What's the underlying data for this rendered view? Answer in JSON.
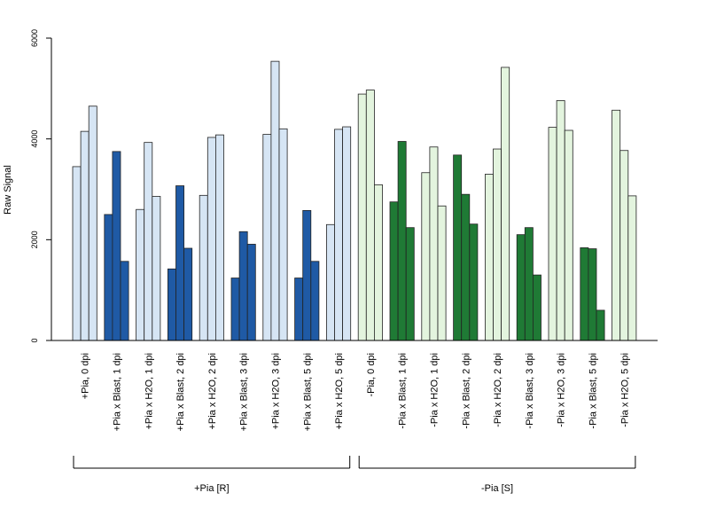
{
  "chart_data": {
    "type": "bar",
    "ylabel": "Raw Signal",
    "ylim": [
      0,
      6000
    ],
    "yticks": [
      "0",
      "2000",
      "4000",
      "6000"
    ],
    "grid": false,
    "legend": "none",
    "replicates_per_category": 3,
    "categories": [
      "+Pia, 0 dpi",
      "+Pia x Blast, 1 dpi",
      "+Pia x H2O, 1 dpi",
      "+Pia x Blast, 2 dpi",
      "+Pia x H2O, 2 dpi",
      "+Pia x Blast, 3 dpi",
      "+Pia x H2O, 3 dpi",
      "+Pia x Blast, 5 dpi",
      "+Pia x H2O, 5 dpi",
      "-Pia, 0 dpi",
      "-Pia x Blast, 1 dpi",
      "-Pia x H2O, 1 dpi",
      "-Pia x Blast, 2 dpi",
      "-Pia x H2O, 2 dpi",
      "-Pia x Blast, 3 dpi",
      "-Pia x H2O, 3 dpi",
      "-Pia x Blast, 5 dpi",
      "-Pia x H2O, 5 dpi"
    ],
    "values": [
      [
        3450,
        4150,
        4650
      ],
      [
        2500,
        3750,
        1570
      ],
      [
        2600,
        3930,
        2860
      ],
      [
        1420,
        3070,
        1830
      ],
      [
        2880,
        4030,
        4080
      ],
      [
        1240,
        2160,
        1910
      ],
      [
        4090,
        5540,
        4200
      ],
      [
        1240,
        2580,
        1570
      ],
      [
        2300,
        4190,
        4240
      ],
      [
        4890,
        4970,
        3090
      ],
      [
        2750,
        3950,
        2240
      ],
      [
        3330,
        3840,
        2670
      ],
      [
        3680,
        2900,
        2310
      ],
      [
        3300,
        3800,
        5420
      ],
      [
        2100,
        2240,
        1300
      ],
      [
        4230,
        4760,
        4170
      ],
      [
        1840,
        1820,
        600
      ],
      [
        4570,
        3770,
        2870
      ]
    ],
    "bar_colors": [
      "#d6e5f4",
      "#1f5aa5",
      "#d6e5f4",
      "#1f5aa5",
      "#d6e5f4",
      "#1f5aa5",
      "#d6e5f4",
      "#1f5aa5",
      "#d6e5f4",
      "#e3f4de",
      "#1f7a35",
      "#e3f4de",
      "#1f7a35",
      "#e3f4de",
      "#1f7a35",
      "#e3f4de",
      "#1f7a35",
      "#e3f4de"
    ],
    "groups": [
      {
        "label": "+Pia [R]",
        "first": 0,
        "last": 8
      },
      {
        "label": "-Pia [S]",
        "first": 9,
        "last": 17
      }
    ]
  }
}
